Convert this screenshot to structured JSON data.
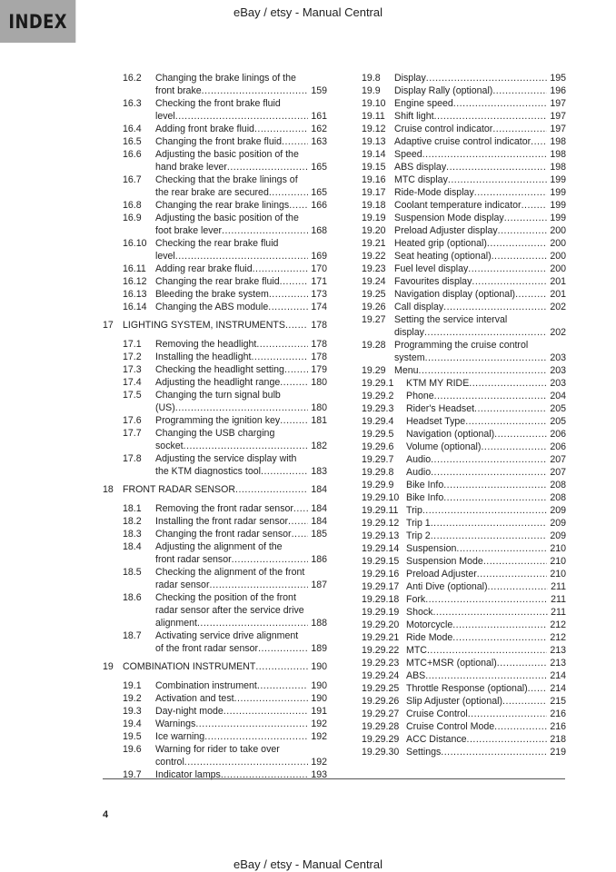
{
  "header": {
    "index_label": "INDEX",
    "watermark": "eBay / etsy - Manual Central"
  },
  "footer": {
    "page_number": "4",
    "watermark": "eBay / etsy - Manual Central"
  },
  "toc": {
    "left": [
      {
        "num": "16.2",
        "lines": [
          "Changing the brake linings of the",
          "front brake"
        ],
        "page": "159"
      },
      {
        "num": "16.3",
        "lines": [
          "Checking the front brake fluid",
          "level"
        ],
        "page": "161"
      },
      {
        "num": "16.4",
        "lines": [
          "Adding front brake fluid"
        ],
        "page": "162"
      },
      {
        "num": "16.5",
        "lines": [
          "Changing the front brake fluid"
        ],
        "page": "163"
      },
      {
        "num": "16.6",
        "lines": [
          "Adjusting the basic position of the",
          "hand brake lever"
        ],
        "page": "165"
      },
      {
        "num": "16.7",
        "lines": [
          "Checking that the brake linings of",
          "the rear brake are secured"
        ],
        "page": "165"
      },
      {
        "num": "16.8",
        "lines": [
          "Changing the rear brake linings"
        ],
        "page": "166"
      },
      {
        "num": "16.9",
        "lines": [
          "Adjusting the basic position of the",
          "foot brake lever"
        ],
        "page": "168"
      },
      {
        "num": "16.10",
        "lines": [
          "Checking the rear brake fluid",
          "level"
        ],
        "page": "169"
      },
      {
        "num": "16.11",
        "lines": [
          "Adding rear brake fluid"
        ],
        "page": "170"
      },
      {
        "num": "16.12",
        "lines": [
          "Changing the rear brake fluid"
        ],
        "page": "171"
      },
      {
        "num": "16.13",
        "lines": [
          "Bleeding the brake system"
        ],
        "page": "173"
      },
      {
        "num": "16.14",
        "lines": [
          "Changing the ABS module"
        ],
        "page": "174"
      },
      {
        "num": "17",
        "lines": [
          "LIGHTING SYSTEM, INSTRUMENTS"
        ],
        "page": "178",
        "chapter": true
      },
      {
        "num": "17.1",
        "lines": [
          "Removing the headlight"
        ],
        "page": "178"
      },
      {
        "num": "17.2",
        "lines": [
          "Installing the headlight"
        ],
        "page": "178"
      },
      {
        "num": "17.3",
        "lines": [
          "Checking the headlight setting"
        ],
        "page": "179"
      },
      {
        "num": "17.4",
        "lines": [
          "Adjusting the headlight range"
        ],
        "page": "180"
      },
      {
        "num": "17.5",
        "lines": [
          "Changing the turn signal bulb",
          "(US)"
        ],
        "page": "180"
      },
      {
        "num": "17.6",
        "lines": [
          "Programming the ignition key"
        ],
        "page": "181"
      },
      {
        "num": "17.7",
        "lines": [
          "Changing the USB charging",
          "socket"
        ],
        "page": "182"
      },
      {
        "num": "17.8",
        "lines": [
          "Adjusting the service display with",
          "the KTM diagnostics tool"
        ],
        "page": "183"
      },
      {
        "num": "18",
        "lines": [
          "FRONT RADAR SENSOR"
        ],
        "page": "184",
        "chapter": true
      },
      {
        "num": "18.1",
        "lines": [
          "Removing the front radar sensor"
        ],
        "page": "184"
      },
      {
        "num": "18.2",
        "lines": [
          "Installing the front radar sensor"
        ],
        "page": "184"
      },
      {
        "num": "18.3",
        "lines": [
          "Changing the front radar sensor"
        ],
        "page": "185"
      },
      {
        "num": "18.4",
        "lines": [
          "Adjusting the alignment of the",
          "front radar sensor"
        ],
        "page": "186"
      },
      {
        "num": "18.5",
        "lines": [
          "Checking the alignment of the front",
          "radar sensor"
        ],
        "page": "187"
      },
      {
        "num": "18.6",
        "lines": [
          "Checking the position of the front",
          "radar sensor after the service drive",
          "alignment"
        ],
        "page": "188"
      },
      {
        "num": "18.7",
        "lines": [
          "Activating service drive alignment",
          "of the front radar sensor"
        ],
        "page": "189"
      },
      {
        "num": "19",
        "lines": [
          "COMBINATION INSTRUMENT"
        ],
        "page": "190",
        "chapter": true
      },
      {
        "num": "19.1",
        "lines": [
          "Combination instrument"
        ],
        "page": "190"
      },
      {
        "num": "19.2",
        "lines": [
          "Activation and test"
        ],
        "page": "190"
      },
      {
        "num": "19.3",
        "lines": [
          "Day-night mode"
        ],
        "page": "191"
      },
      {
        "num": "19.4",
        "lines": [
          "Warnings"
        ],
        "page": "192"
      },
      {
        "num": "19.5",
        "lines": [
          "Ice warning"
        ],
        "page": "192"
      },
      {
        "num": "19.6",
        "lines": [
          "Warning for rider to take over",
          "control"
        ],
        "page": "192"
      },
      {
        "num": "19.7",
        "lines": [
          "Indicator lamps"
        ],
        "page": "193"
      }
    ],
    "right": [
      {
        "num": "19.8",
        "lines": [
          "Display"
        ],
        "page": "195"
      },
      {
        "num": "19.9",
        "lines": [
          "Display Rally (optional)"
        ],
        "page": "196"
      },
      {
        "num": "19.10",
        "lines": [
          "Engine speed"
        ],
        "page": "197"
      },
      {
        "num": "19.11",
        "lines": [
          "Shift light"
        ],
        "page": "197"
      },
      {
        "num": "19.12",
        "lines": [
          "Cruise control indicator"
        ],
        "page": "197"
      },
      {
        "num": "19.13",
        "lines": [
          "Adaptive cruise control indicator"
        ],
        "page": "198"
      },
      {
        "num": "19.14",
        "lines": [
          "Speed"
        ],
        "page": "198"
      },
      {
        "num": "19.15",
        "lines": [
          "ABS display"
        ],
        "page": "198"
      },
      {
        "num": "19.16",
        "lines": [
          "MTC display"
        ],
        "page": "199"
      },
      {
        "num": "19.17",
        "lines": [
          "Ride-Mode display"
        ],
        "page": "199"
      },
      {
        "num": "19.18",
        "lines": [
          "Coolant temperature indicator"
        ],
        "page": "199"
      },
      {
        "num": "19.19",
        "lines": [
          "Suspension Mode display"
        ],
        "page": "199"
      },
      {
        "num": "19.20",
        "lines": [
          "Preload Adjuster display"
        ],
        "page": "200"
      },
      {
        "num": "19.21",
        "lines": [
          "Heated grip (optional)"
        ],
        "page": "200"
      },
      {
        "num": "19.22",
        "lines": [
          "Seat heating (optional)"
        ],
        "page": "200"
      },
      {
        "num": "19.23",
        "lines": [
          "Fuel level display"
        ],
        "page": "200"
      },
      {
        "num": "19.24",
        "lines": [
          "Favourites display"
        ],
        "page": "201"
      },
      {
        "num": "19.25",
        "lines": [
          "Navigation display (optional)"
        ],
        "page": "201"
      },
      {
        "num": "19.26",
        "lines": [
          "Call display"
        ],
        "page": "202"
      },
      {
        "num": "19.27",
        "lines": [
          "Setting the service interval",
          "display"
        ],
        "page": "202"
      },
      {
        "num": "19.28",
        "lines": [
          "Programming the cruise control",
          "system"
        ],
        "page": "203"
      },
      {
        "num": "19.29",
        "lines": [
          "Menu"
        ],
        "page": "203"
      },
      {
        "num": "19.29.1",
        "lines": [
          "KTM MY RIDE"
        ],
        "page": "203"
      },
      {
        "num": "19.29.2",
        "lines": [
          "Phone"
        ],
        "page": "204"
      },
      {
        "num": "19.29.3",
        "lines": [
          "Rider's Headset"
        ],
        "page": "205"
      },
      {
        "num": "19.29.4",
        "lines": [
          "Headset Type"
        ],
        "page": "205"
      },
      {
        "num": "19.29.5",
        "lines": [
          "Navigation (optional)"
        ],
        "page": "206"
      },
      {
        "num": "19.29.6",
        "lines": [
          "Volume (optional)"
        ],
        "page": "206"
      },
      {
        "num": "19.29.7",
        "lines": [
          "Audio"
        ],
        "page": "207"
      },
      {
        "num": "19.29.8",
        "lines": [
          "Audio"
        ],
        "page": "207"
      },
      {
        "num": "19.29.9",
        "lines": [
          "Bike Info"
        ],
        "page": "208"
      },
      {
        "num": "19.29.10",
        "lines": [
          "Bike Info"
        ],
        "page": "208"
      },
      {
        "num": "19.29.11",
        "lines": [
          "Trip"
        ],
        "page": "209"
      },
      {
        "num": "19.29.12",
        "lines": [
          "Trip 1"
        ],
        "page": "209"
      },
      {
        "num": "19.29.13",
        "lines": [
          "Trip 2"
        ],
        "page": "209"
      },
      {
        "num": "19.29.14",
        "lines": [
          "Suspension"
        ],
        "page": "210"
      },
      {
        "num": "19.29.15",
        "lines": [
          "Suspension Mode"
        ],
        "page": "210"
      },
      {
        "num": "19.29.16",
        "lines": [
          "Preload Adjuster"
        ],
        "page": "210"
      },
      {
        "num": "19.29.17",
        "lines": [
          "Anti Dive (optional)"
        ],
        "page": "211"
      },
      {
        "num": "19.29.18",
        "lines": [
          "Fork"
        ],
        "page": "211"
      },
      {
        "num": "19.29.19",
        "lines": [
          "Shock"
        ],
        "page": "211"
      },
      {
        "num": "19.29.20",
        "lines": [
          "Motorcycle"
        ],
        "page": "212"
      },
      {
        "num": "19.29.21",
        "lines": [
          "Ride Mode"
        ],
        "page": "212"
      },
      {
        "num": "19.29.22",
        "lines": [
          "MTC"
        ],
        "page": "213"
      },
      {
        "num": "19.29.23",
        "lines": [
          "MTC+MSR (optional)"
        ],
        "page": "213"
      },
      {
        "num": "19.29.24",
        "lines": [
          "ABS"
        ],
        "page": "214"
      },
      {
        "num": "19.29.25",
        "lines": [
          "Throttle Response (optional)"
        ],
        "page": "214"
      },
      {
        "num": "19.29.26",
        "lines": [
          "Slip Adjuster (optional)"
        ],
        "page": "215"
      },
      {
        "num": "19.29.27",
        "lines": [
          "Cruise Control"
        ],
        "page": "216"
      },
      {
        "num": "19.29.28",
        "lines": [
          "Cruise Control Mode"
        ],
        "page": "216"
      },
      {
        "num": "19.29.29",
        "lines": [
          "ACC Distance"
        ],
        "page": "218"
      },
      {
        "num": "19.29.30",
        "lines": [
          "Settings"
        ],
        "page": "219"
      }
    ]
  }
}
